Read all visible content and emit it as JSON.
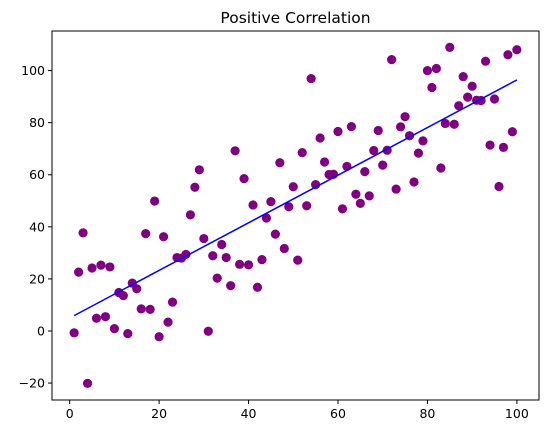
{
  "chart_data": {
    "type": "scatter",
    "title": "Positive Correlation",
    "xlabel": "",
    "ylabel": "",
    "xlim": [
      -3.95,
      104.95
    ],
    "ylim": [
      -26.5,
      115.2
    ],
    "x_ticks": [
      0,
      20,
      40,
      60,
      80,
      100
    ],
    "y_ticks": [
      -20,
      0,
      20,
      40,
      60,
      80,
      100
    ],
    "grid": false,
    "legend": "none",
    "colors": {
      "points": "#800080",
      "fit_line": "#0000ff",
      "axes": "#000000"
    },
    "series": [
      {
        "kind": "points",
        "x": [
          1,
          2,
          3,
          4,
          5,
          6,
          7,
          8,
          9,
          10,
          11,
          12,
          13,
          14,
          15,
          16,
          17,
          18,
          19,
          20,
          21,
          22,
          23,
          24,
          25,
          26,
          27,
          28,
          29,
          30,
          31,
          32,
          33,
          34,
          35,
          36,
          37,
          38,
          39,
          40,
          41,
          42,
          43,
          44,
          45,
          46,
          47,
          48,
          49,
          50,
          51,
          52,
          53,
          54,
          55,
          56,
          57,
          58,
          59,
          60,
          61,
          62,
          63,
          64,
          65,
          66,
          67,
          68,
          69,
          70,
          71,
          72,
          73,
          74,
          75,
          76,
          77,
          78,
          79,
          80,
          81,
          82,
          83,
          84,
          85,
          86,
          87,
          88,
          89,
          90,
          91,
          92,
          93,
          94,
          95,
          96,
          97,
          98,
          99,
          100
        ],
        "y": [
          -0.7,
          22.6,
          37.7,
          -20.1,
          24.2,
          4.9,
          25.3,
          5.5,
          24.6,
          0.9,
          14.8,
          13.6,
          -1,
          18.4,
          16.2,
          8.5,
          37.4,
          8.3,
          49.9,
          -2.2,
          36.2,
          3.4,
          11.1,
          28.2,
          28,
          29.4,
          44.6,
          55.2,
          61.9,
          35.5,
          -0.1,
          28.9,
          20.3,
          33.2,
          28.2,
          17.4,
          69.2,
          25.6,
          58.5,
          25.4,
          48.4,
          16.8,
          27.4,
          43.4,
          49.7,
          37.2,
          64.6,
          31.7,
          47.7,
          55.4,
          27.2,
          68.5,
          48.1,
          96.9,
          56.2,
          74.1,
          64.9,
          60.1,
          60.2,
          76.6,
          46.9,
          63.2,
          78.5,
          52.5,
          49,
          61.2,
          51.9,
          69.3,
          77,
          63.7,
          69.4,
          104.2,
          54.5,
          78.4,
          82.3,
          75,
          57.2,
          68.3,
          73,
          100,
          93.5,
          100.8,
          62.6,
          79.7,
          108.9,
          79.4,
          86.5,
          97.7,
          89.8,
          94,
          88.6,
          88.5,
          103.6,
          71.4,
          89.1,
          55.5,
          70.5,
          106.1,
          76.5,
          108
        ]
      },
      {
        "kind": "fit_line",
        "x": [
          1,
          100
        ],
        "y": [
          5.9,
          96.4
        ]
      }
    ]
  }
}
